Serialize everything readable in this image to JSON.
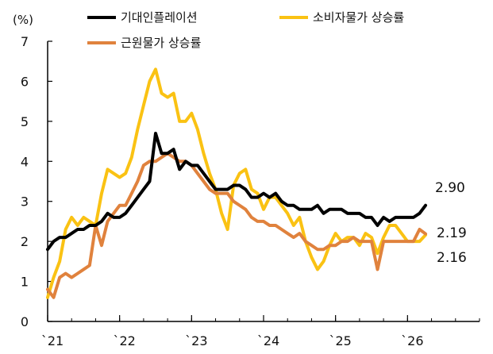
{
  "chart_data": {
    "type": "line",
    "unit_label": "(%)",
    "ylim": [
      0,
      7
    ],
    "y_ticks": [
      "0",
      "1",
      "2",
      "3",
      "4",
      "5",
      "6",
      "7"
    ],
    "x_tick_labels": [
      "`21",
      "`22",
      "`23",
      "`24",
      "`25",
      "`26"
    ],
    "x_tick_values": [
      2021,
      2022,
      2023,
      2024,
      2025,
      2026
    ],
    "xlim": [
      2021,
      2027
    ],
    "grid": false,
    "legend_placement": "top",
    "series": [
      {
        "name": "기대인플레이션",
        "color": "#000000",
        "end_label": "2.90",
        "x": [
          2021.0,
          2021.083,
          2021.167,
          2021.25,
          2021.333,
          2021.417,
          2021.5,
          2021.583,
          2021.667,
          2021.75,
          2021.833,
          2021.917,
          2022.0,
          2022.083,
          2022.167,
          2022.25,
          2022.333,
          2022.417,
          2022.5,
          2022.583,
          2022.667,
          2022.75,
          2022.833,
          2022.917,
          2023.0,
          2023.083,
          2023.167,
          2023.25,
          2023.333,
          2023.417,
          2023.5,
          2023.583,
          2023.667,
          2023.75,
          2023.833,
          2023.917,
          2024.0,
          2024.083,
          2024.167,
          2024.25,
          2024.333,
          2024.417,
          2024.5,
          2024.583,
          2024.667,
          2024.75,
          2024.833,
          2024.917,
          2025.0,
          2025.083,
          2025.167,
          2025.25,
          2025.333,
          2025.417,
          2025.5,
          2025.583,
          2025.667,
          2025.75,
          2025.833,
          2025.917,
          2026.0,
          2026.083,
          2026.167,
          2026.25
        ],
        "values": [
          1.8,
          2.0,
          2.1,
          2.1,
          2.2,
          2.3,
          2.3,
          2.4,
          2.4,
          2.5,
          2.7,
          2.6,
          2.6,
          2.7,
          2.9,
          3.1,
          3.3,
          3.5,
          4.7,
          4.2,
          4.2,
          4.3,
          3.8,
          4.0,
          3.9,
          3.9,
          3.7,
          3.5,
          3.3,
          3.3,
          3.3,
          3.4,
          3.4,
          3.3,
          3.1,
          3.1,
          3.2,
          3.1,
          3.2,
          3.0,
          2.9,
          2.9,
          2.8,
          2.8,
          2.8,
          2.9,
          2.7,
          2.8,
          2.8,
          2.8,
          2.7,
          2.7,
          2.7,
          2.6,
          2.6,
          2.4,
          2.6,
          2.5,
          2.6,
          2.6,
          2.6,
          2.6,
          2.7,
          2.9
        ]
      },
      {
        "name": "소비자물가 상승률",
        "color": "#FAC213",
        "end_label": "2.16",
        "x": [
          2021.0,
          2021.083,
          2021.167,
          2021.25,
          2021.333,
          2021.417,
          2021.5,
          2021.583,
          2021.667,
          2021.75,
          2021.833,
          2021.917,
          2022.0,
          2022.083,
          2022.167,
          2022.25,
          2022.333,
          2022.417,
          2022.5,
          2022.583,
          2022.667,
          2022.75,
          2022.833,
          2022.917,
          2023.0,
          2023.083,
          2023.167,
          2023.25,
          2023.333,
          2023.417,
          2023.5,
          2023.583,
          2023.667,
          2023.75,
          2023.833,
          2023.917,
          2024.0,
          2024.083,
          2024.167,
          2024.25,
          2024.333,
          2024.417,
          2024.5,
          2024.583,
          2024.667,
          2024.75,
          2024.833,
          2024.917,
          2025.0,
          2025.083,
          2025.167,
          2025.25,
          2025.333,
          2025.417,
          2025.5,
          2025.583,
          2025.667,
          2025.75,
          2025.833,
          2025.917,
          2026.0,
          2026.083,
          2026.167,
          2026.25
        ],
        "values": [
          0.6,
          1.1,
          1.5,
          2.3,
          2.6,
          2.4,
          2.6,
          2.5,
          2.4,
          3.2,
          3.8,
          3.7,
          3.6,
          3.7,
          4.1,
          4.8,
          5.4,
          6.0,
          6.3,
          5.7,
          5.6,
          5.7,
          5.0,
          5.0,
          5.2,
          4.8,
          4.2,
          3.7,
          3.3,
          2.7,
          2.3,
          3.4,
          3.7,
          3.8,
          3.3,
          3.2,
          2.8,
          3.1,
          3.1,
          2.9,
          2.7,
          2.4,
          2.6,
          2.0,
          1.6,
          1.3,
          1.5,
          1.9,
          2.2,
          2.0,
          2.1,
          2.1,
          1.9,
          2.2,
          2.1,
          1.7,
          2.1,
          2.4,
          2.4,
          2.2,
          2.0,
          2.0,
          2.0,
          2.16
        ]
      },
      {
        "name": "근원물가 상승률",
        "color": "#E0823D",
        "end_label": "2.19",
        "x": [
          2021.0,
          2021.083,
          2021.167,
          2021.25,
          2021.333,
          2021.417,
          2021.5,
          2021.583,
          2021.667,
          2021.75,
          2021.833,
          2021.917,
          2022.0,
          2022.083,
          2022.167,
          2022.25,
          2022.333,
          2022.417,
          2022.5,
          2022.583,
          2022.667,
          2022.75,
          2022.833,
          2022.917,
          2023.0,
          2023.083,
          2023.167,
          2023.25,
          2023.333,
          2023.417,
          2023.5,
          2023.583,
          2023.667,
          2023.75,
          2023.833,
          2023.917,
          2024.0,
          2024.083,
          2024.167,
          2024.25,
          2024.333,
          2024.417,
          2024.5,
          2024.583,
          2024.667,
          2024.75,
          2024.833,
          2024.917,
          2025.0,
          2025.083,
          2025.167,
          2025.25,
          2025.333,
          2025.417,
          2025.5,
          2025.583,
          2025.667,
          2025.75,
          2025.833,
          2025.917,
          2026.0,
          2026.083,
          2026.167,
          2026.25
        ],
        "values": [
          0.8,
          0.6,
          1.1,
          1.2,
          1.1,
          1.2,
          1.3,
          1.4,
          2.4,
          1.9,
          2.5,
          2.7,
          2.9,
          2.9,
          3.2,
          3.5,
          3.9,
          4.0,
          4.0,
          4.1,
          4.2,
          4.1,
          4.0,
          4.0,
          3.9,
          3.7,
          3.5,
          3.3,
          3.2,
          3.2,
          3.2,
          3.0,
          2.9,
          2.8,
          2.6,
          2.5,
          2.5,
          2.4,
          2.4,
          2.3,
          2.2,
          2.1,
          2.2,
          2.0,
          1.9,
          1.8,
          1.8,
          1.9,
          1.9,
          2.0,
          2.0,
          2.1,
          2.0,
          2.0,
          2.0,
          1.3,
          2.0,
          2.0,
          2.0,
          2.0,
          2.0,
          2.0,
          2.3,
          2.19
        ]
      }
    ]
  }
}
